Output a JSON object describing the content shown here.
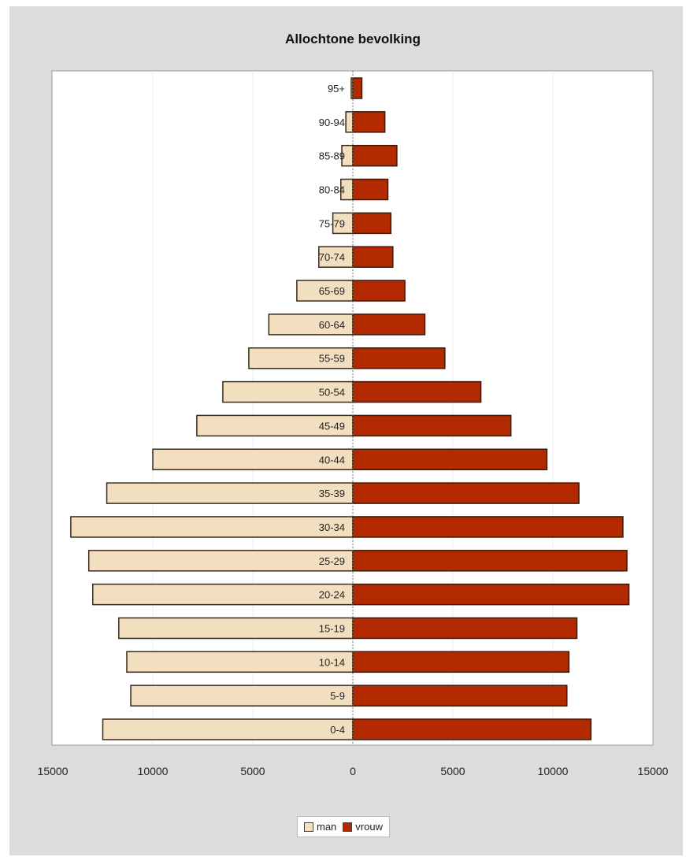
{
  "chart_data": {
    "type": "bar",
    "orientation": "horizontal",
    "layout": "population-pyramid",
    "title": "Allochtone bevolking",
    "categories": [
      "0-4",
      "5-9",
      "10-14",
      "15-19",
      "20-24",
      "25-29",
      "30-34",
      "35-39",
      "40-44",
      "45-49",
      "50-54",
      "55-59",
      "60-64",
      "65-69",
      "70-74",
      "75-79",
      "80-84",
      "85-89",
      "90-94",
      "95+"
    ],
    "series": [
      {
        "name": "man",
        "color": "#f2dfc0",
        "values": [
          12500,
          11100,
          11300,
          11700,
          13000,
          13200,
          14100,
          12300,
          10000,
          7800,
          6500,
          5200,
          4200,
          2800,
          1700,
          1000,
          600,
          550,
          350,
          80
        ]
      },
      {
        "name": "vrouw",
        "color": "#b32a00",
        "values": [
          11900,
          10700,
          10800,
          11200,
          13800,
          13700,
          13500,
          11300,
          9700,
          7900,
          6400,
          4600,
          3600,
          2600,
          2000,
          1900,
          1750,
          2200,
          1600,
          450
        ]
      }
    ],
    "xaxis": {
      "min": -15000,
      "max": 15000,
      "ticks": [
        -15000,
        -10000,
        -5000,
        0,
        5000,
        10000,
        15000
      ],
      "tick_labels": [
        "15000",
        "10000",
        "5000",
        "0",
        "5000",
        "10000",
        "15000"
      ]
    },
    "grid": true,
    "legend_position": "bottom-center"
  }
}
